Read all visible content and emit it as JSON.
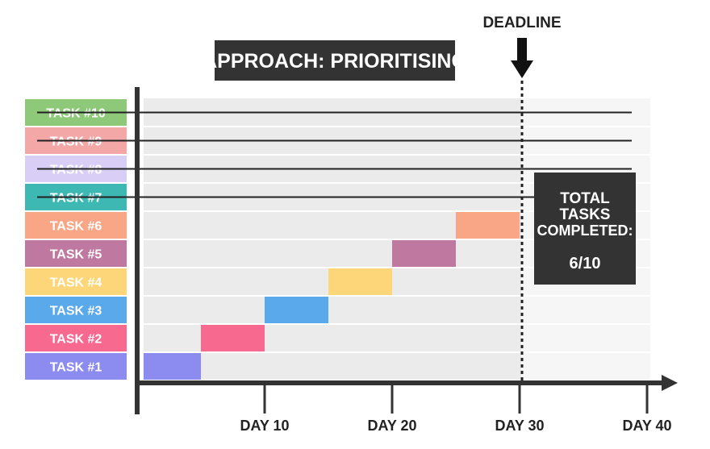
{
  "title": "APPROACH: PRIORITISING",
  "deadline_label": "DEADLINE",
  "summary": {
    "line1": "TOTAL",
    "line2": "TASKS",
    "line3": "COMPLETED:",
    "value": "6/10"
  },
  "axis": {
    "ticks": [
      {
        "day": 10,
        "label": "DAY 10"
      },
      {
        "day": 20,
        "label": "DAY 20"
      },
      {
        "day": 30,
        "label": "DAY 30"
      },
      {
        "day": 40,
        "label": "DAY 40"
      }
    ],
    "deadline_day": 30
  },
  "tasks": [
    {
      "label": "TASK #1",
      "color": "#8c8cf0",
      "start": 0.5,
      "end": 5,
      "completed": true
    },
    {
      "label": "TASK #2",
      "color": "#f7698f",
      "start": 5,
      "end": 10,
      "completed": true
    },
    {
      "label": "TASK #3",
      "color": "#5aa9eb",
      "start": 10,
      "end": 15,
      "completed": true
    },
    {
      "label": "TASK #4",
      "color": "#fed67a",
      "start": 15,
      "end": 20,
      "completed": true
    },
    {
      "label": "TASK #5",
      "color": "#bf789f",
      "start": 20,
      "end": 25,
      "completed": true
    },
    {
      "label": "TASK #6",
      "color": "#f8a685",
      "start": 25,
      "end": 30,
      "completed": true
    },
    {
      "label": "TASK #7",
      "color": "#3eb8b3",
      "completed": false
    },
    {
      "label": "TASK #8",
      "color": "#d8cef6",
      "completed": false
    },
    {
      "label": "TASK #9",
      "color": "#f3a7a7",
      "completed": false
    },
    {
      "label": "TASK #10",
      "color": "#8ec97a",
      "completed": false
    }
  ]
}
